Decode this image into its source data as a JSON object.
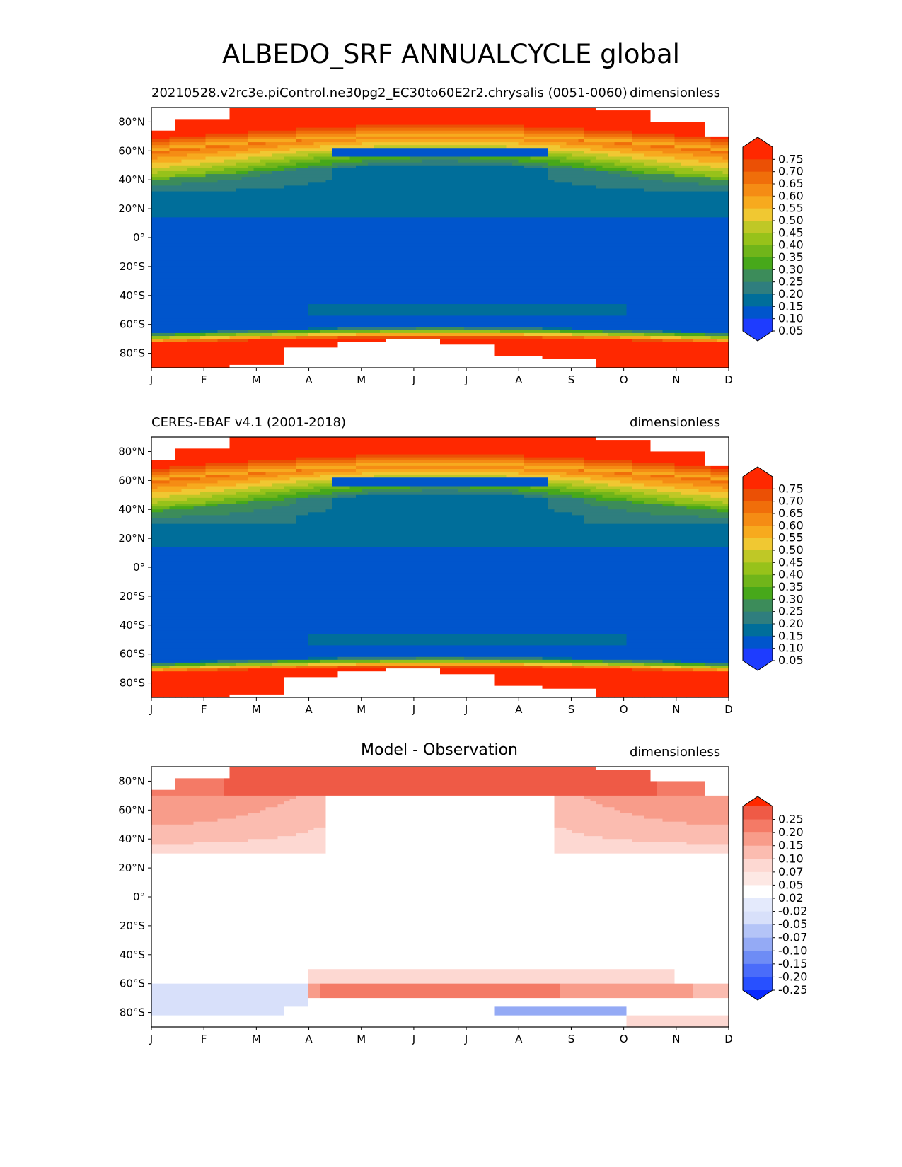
{
  "title": "ALBEDO_SRF ANNUALCYCLE global",
  "colors": {
    "sequential": [
      "#1e3cff",
      "#0055cc",
      "#006e9a",
      "#2f7e7e",
      "#3c8c5a",
      "#47a81a",
      "#70b51a",
      "#97c21a",
      "#bfc826",
      "#f0c832",
      "#f7aa1e",
      "#f58c14",
      "#f06e0a",
      "#eb5005",
      "#ff2800"
    ],
    "diverging": [
      "#0a2aff",
      "#2850ff",
      "#4a6cfa",
      "#6e8cf5",
      "#94aaf5",
      "#b4c4f7",
      "#d8e0fa",
      "#ffffff",
      "#fdd8d2",
      "#fbbcb0",
      "#f89c8a",
      "#f47a66",
      "#ef5a46",
      "#ff2800"
    ]
  },
  "chart_data": [
    {
      "type": "heatmap",
      "name": "model",
      "left_title": "20210528.v2rc3e.piControl.ne30pg2_EC30to60E2r2.chrysalis (0051-0060)",
      "center_title": "",
      "right_title": "dimensionless",
      "x_ticks": [
        "J",
        "F",
        "M",
        "A",
        "M",
        "J",
        "J",
        "A",
        "S",
        "O",
        "N",
        "D"
      ],
      "y_ticks": [
        "80°N",
        "60°N",
        "40°N",
        "20°N",
        "0°",
        "20°S",
        "40°S",
        "60°S",
        "80°S"
      ],
      "y_values": [
        80,
        60,
        40,
        20,
        0,
        -20,
        -40,
        -60,
        -80
      ],
      "ylim": [
        -90,
        90
      ],
      "colorbar": [
        "0.75",
        "0.70",
        "0.65",
        "0.60",
        "0.55",
        "0.50",
        "0.45",
        "0.40",
        "0.35",
        "0.30",
        "0.25",
        "0.20",
        "0.15",
        "0.10",
        "0.05"
      ],
      "scale": "sequential",
      "nh_cap_lat": [
        74,
        82,
        90,
        90,
        90,
        90,
        90,
        90,
        90,
        88,
        80,
        70
      ],
      "sh_cap_lat": [
        -90,
        -90,
        -88,
        -76,
        -71,
        -70,
        -74,
        -82,
        -83,
        -90,
        -90,
        -90
      ],
      "summer_minimum": "0.05"
    },
    {
      "type": "heatmap",
      "name": "observation",
      "left_title": "CERES-EBAF v4.1 (2001-2018)",
      "center_title": "",
      "right_title": "dimensionless",
      "x_ticks": [
        "J",
        "F",
        "M",
        "A",
        "M",
        "J",
        "J",
        "A",
        "S",
        "O",
        "N",
        "D"
      ],
      "y_ticks": [
        "80°N",
        "60°N",
        "40°N",
        "20°N",
        "0°",
        "20°S",
        "40°S",
        "60°S",
        "80°S"
      ],
      "y_values": [
        80,
        60,
        40,
        20,
        0,
        -20,
        -40,
        -60,
        -80
      ],
      "ylim": [
        -90,
        90
      ],
      "colorbar": [
        "0.75",
        "0.70",
        "0.65",
        "0.60",
        "0.55",
        "0.50",
        "0.45",
        "0.40",
        "0.35",
        "0.30",
        "0.25",
        "0.20",
        "0.15",
        "0.10",
        "0.05"
      ],
      "scale": "sequential"
    },
    {
      "type": "heatmap",
      "name": "difference",
      "left_title": "",
      "center_title": "Model - Observation",
      "right_title": "dimensionless",
      "x_ticks": [
        "J",
        "F",
        "M",
        "A",
        "M",
        "J",
        "J",
        "A",
        "S",
        "O",
        "N",
        "D"
      ],
      "y_ticks": [
        "80°N",
        "60°N",
        "40°N",
        "20°N",
        "0°",
        "20°S",
        "40°S",
        "60°S",
        "80°S"
      ],
      "y_values": [
        80,
        60,
        40,
        20,
        0,
        -20,
        -40,
        -60,
        -80
      ],
      "ylim": [
        -90,
        90
      ],
      "colorbar": [
        "0.25",
        "0.20",
        "0.15",
        "0.10",
        "0.07",
        "0.05",
        "0.02",
        "-0.02",
        "-0.05",
        "-0.07",
        "-0.10",
        "-0.15",
        "-0.20",
        "-0.25"
      ],
      "scale": "diverging"
    }
  ]
}
